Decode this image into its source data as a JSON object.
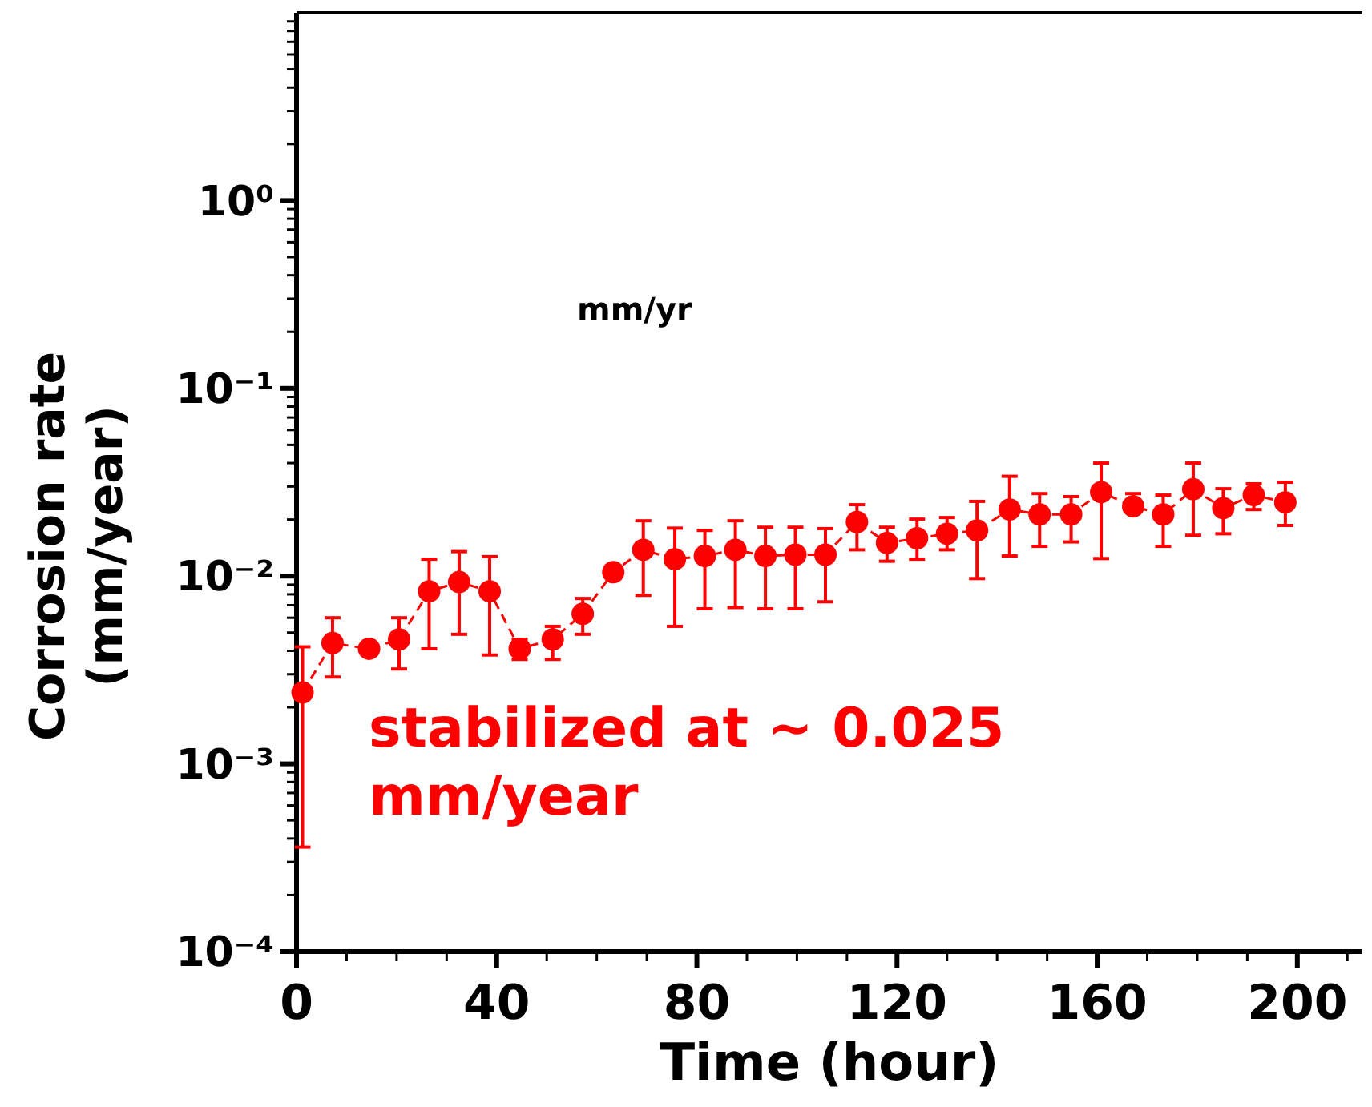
{
  "chart_data": {
    "type": "line",
    "xlabel": "Time (hour)",
    "ylabel": "Corrosion rate (mm/year)",
    "log": "y",
    "grid": false,
    "marker": "circle",
    "line_style": "dashed",
    "xlim": [
      0,
      213
    ],
    "xticks": [
      0,
      40,
      80,
      120,
      160,
      200
    ],
    "ylim": [
      0.0001,
      10
    ],
    "yticks": [
      {
        "value": 1,
        "label": "10⁰"
      },
      {
        "value": 0.1,
        "label": "10⁻¹"
      },
      {
        "value": 0.01,
        "label": "10⁻²"
      },
      {
        "value": 0.001,
        "label": "10⁻³"
      },
      {
        "value": 0.0001,
        "label": "10⁻⁴"
      }
    ],
    "annotations": [
      "mm/yr",
      "stabilized at ~ 0.025 mm/year"
    ],
    "series": [
      {
        "color": "#ff0000",
        "x": [
          1.2,
          7.2,
          14.5,
          20.5,
          26.5,
          32.5,
          38.6,
          44.6,
          51.2,
          57.2,
          63.3,
          69.3,
          75.6,
          81.6,
          87.7,
          93.7,
          99.7,
          105.7,
          112,
          118,
          124,
          130,
          136,
          142.5,
          148.5,
          154.8,
          160.8,
          167.2,
          173.2,
          179.2,
          185.2,
          191.3,
          197.6
        ],
        "values": [
          0.0024,
          0.0044,
          0.0041,
          0.0046,
          0.0083,
          0.0093,
          0.0083,
          0.0041,
          0.0046,
          0.0063,
          0.0105,
          0.0138,
          0.0123,
          0.0128,
          0.0138,
          0.0128,
          0.013,
          0.013,
          0.0194,
          0.015,
          0.0159,
          0.0168,
          0.0175,
          0.0226,
          0.0213,
          0.0213,
          0.028,
          0.0235,
          0.0213,
          0.029,
          0.023,
          0.027,
          0.0247
        ],
        "errors": [
          [
            0.00036,
            0.0042
          ],
          [
            0.0029,
            0.006
          ],
          null,
          [
            0.0032,
            0.006
          ],
          [
            0.0041,
            0.0123
          ],
          [
            0.0049,
            0.0135
          ],
          [
            0.0038,
            0.0127
          ],
          [
            0.0036,
            0.0046
          ],
          [
            0.0036,
            0.0054
          ],
          [
            0.0049,
            0.0076
          ],
          null,
          [
            0.0079,
            0.0197
          ],
          [
            0.0054,
            0.018
          ],
          [
            0.0067,
            0.0175
          ],
          [
            0.0068,
            0.0197
          ],
          [
            0.0067,
            0.0182
          ],
          [
            0.0067,
            0.0182
          ],
          [
            0.0073,
            0.0179
          ],
          [
            0.0138,
            0.024
          ],
          [
            0.012,
            0.0182
          ],
          [
            0.0123,
            0.0201
          ],
          [
            0.0138,
            0.0205
          ],
          [
            0.0097,
            0.025
          ],
          [
            0.0128,
            0.034
          ],
          [
            0.0144,
            0.0275
          ],
          [
            0.0152,
            0.0265
          ],
          [
            0.0124,
            0.04
          ],
          [
            0.0218,
            0.0275
          ],
          [
            0.0144,
            0.027
          ],
          [
            0.0165,
            0.04
          ],
          [
            0.0168,
            0.0292
          ],
          [
            0.0226,
            0.031
          ],
          [
            0.0186,
            0.0316
          ]
        ]
      }
    ]
  }
}
